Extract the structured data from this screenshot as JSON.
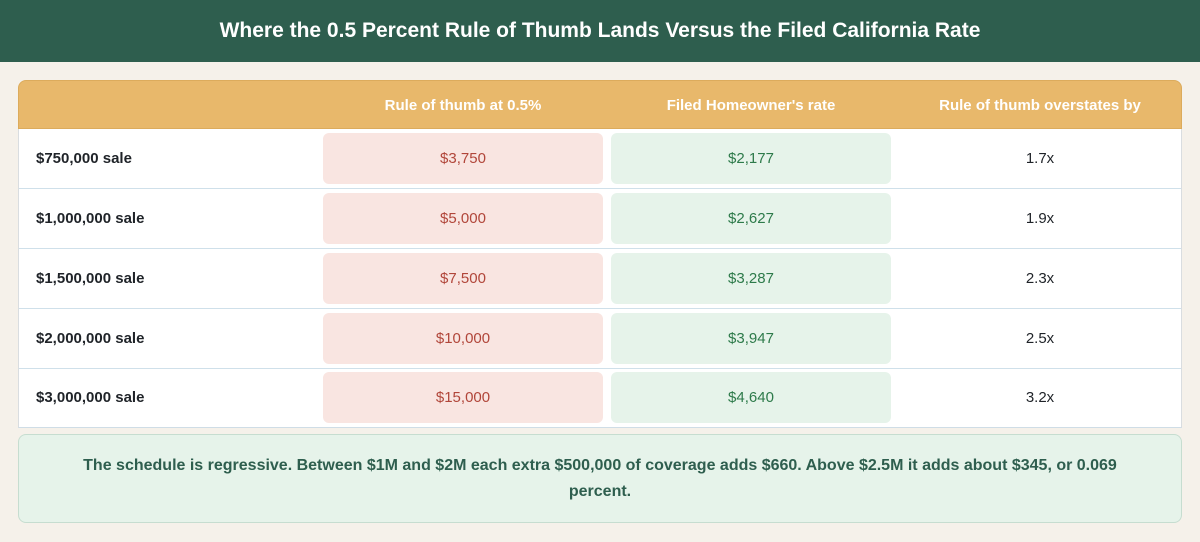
{
  "title": "Where the 0.5 Percent Rule of Thumb Lands Versus the Filed California Rate",
  "table": {
    "headers": [
      "",
      "Rule of thumb at 0.5%",
      "Filed Homeowner's rate",
      "Rule of thumb overstates by"
    ],
    "rows": [
      {
        "label": "$750,000 sale",
        "thumb": "$3,750",
        "filed": "$2,177",
        "ratio": "1.7x"
      },
      {
        "label": "$1,000,000 sale",
        "thumb": "$5,000",
        "filed": "$2,627",
        "ratio": "1.9x"
      },
      {
        "label": "$1,500,000 sale",
        "thumb": "$7,500",
        "filed": "$3,287",
        "ratio": "2.3x"
      },
      {
        "label": "$2,000,000 sale",
        "thumb": "$10,000",
        "filed": "$3,947",
        "ratio": "2.5x"
      },
      {
        "label": "$3,000,000 sale",
        "thumb": "$15,000",
        "filed": "$4,640",
        "ratio": "3.2x"
      }
    ]
  },
  "note": "The schedule is regressive. Between $1M and $2M each extra $500,000 of coverage adds $660. Above $2.5M it adds about $345, or 0.069 percent.",
  "colors": {
    "title_bg": "#2e5e4e",
    "header_bg": "#e8b86b",
    "thumb_bg": "#f9e5e1",
    "thumb_text": "#b1463a",
    "filed_bg": "#e6f3ea",
    "filed_text": "#2d7a4a",
    "page_bg": "#f5f1ea"
  }
}
